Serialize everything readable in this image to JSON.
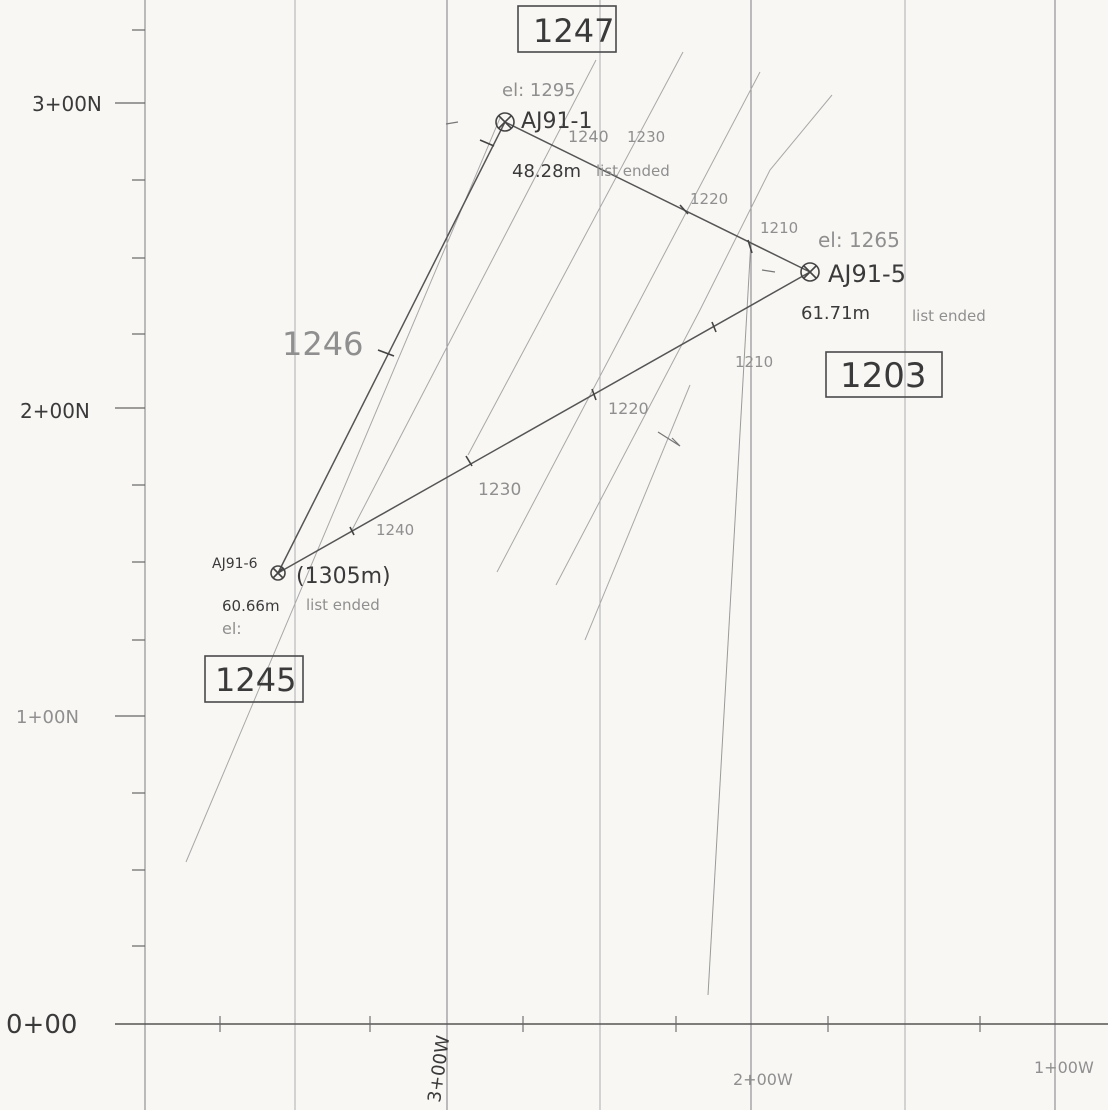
{
  "grid_labels": {
    "north": [
      "3+00N",
      "2+00N",
      "1+00N",
      "0+00"
    ],
    "west": [
      "3+00W",
      "2+00W",
      "1+00W"
    ]
  },
  "elevation_boxes": [
    "1247",
    "1203",
    "1245"
  ],
  "section_label": "1246",
  "drillholes": [
    {
      "id": "AJ91-1",
      "elevation": "el: 1295",
      "length": "48.28m",
      "note": "list ended"
    },
    {
      "id": "AJ91-5",
      "elevation": "el: 1265",
      "length": "61.71m",
      "note": "list ended"
    },
    {
      "id": "AJ91-6",
      "elevation": "el:",
      "length": "60.66m",
      "note": "list ended",
      "extra": "(1305m)"
    }
  ],
  "contour_labels": {
    "top": [
      "1240",
      "1230",
      "1220",
      "1210"
    ],
    "bottom": [
      "1210",
      "1220",
      "1230",
      "1240"
    ]
  },
  "colors": {
    "ink": "#3a3a3a",
    "faint": "#9a9a9a",
    "paper": "#f8f7f4"
  }
}
